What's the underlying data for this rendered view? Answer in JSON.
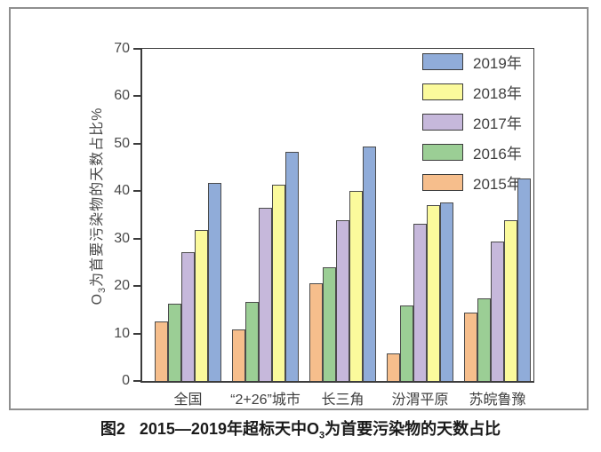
{
  "figure": {
    "caption": {
      "prefix": "图2",
      "before_sub": "2015—2019年超标天中O",
      "sub": "3",
      "after_sub": "为首要污染物的天数占比"
    }
  },
  "colors": {
    "axis": "#3c3c3c",
    "tick_text": "#4a4a4a",
    "figure_border": "#8f8f8f",
    "bar_border": "#4b4b4b"
  },
  "chart_data": {
    "type": "bar",
    "title": "图2 2015—2019年超标天中O3为首要污染物的天数占比",
    "xlabel": "",
    "ylabel": "O3为首要污染物的天数占比%",
    "ylabel_parts": {
      "before_sub": "O",
      "sub": "3",
      "after_sub": "为首要污染物的天数占比%"
    },
    "categories": [
      "全国",
      "“2+26”城市",
      "长三角",
      "汾渭平原",
      "苏皖鲁豫"
    ],
    "series": [
      {
        "name": "2015年",
        "color": "#F6BE8C",
        "values": [
          12.6,
          10.9,
          20.6,
          5.8,
          14.4
        ]
      },
      {
        "name": "2016年",
        "color": "#9BCE95",
        "values": [
          16.3,
          16.7,
          23.9,
          15.9,
          17.4
        ]
      },
      {
        "name": "2017年",
        "color": "#C6B8DB",
        "values": [
          27.2,
          36.5,
          33.8,
          33.1,
          29.4
        ]
      },
      {
        "name": "2018年",
        "color": "#FBFA9C",
        "values": [
          31.8,
          41.4,
          40.1,
          37.0,
          33.8
        ]
      },
      {
        "name": "2019年",
        "color": "#90ACD9",
        "values": [
          41.8,
          48.3,
          49.4,
          37.7,
          42.7
        ]
      }
    ],
    "legend_order": [
      "2019年",
      "2018年",
      "2017年",
      "2016年",
      "2015年"
    ],
    "legend_position": "top-right-inside",
    "ylim": [
      0,
      70
    ],
    "yticks": [
      0,
      10,
      20,
      30,
      40,
      50,
      60,
      70
    ],
    "grid": false
  }
}
